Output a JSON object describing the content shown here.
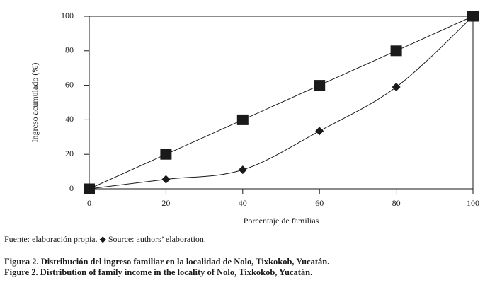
{
  "chart_data": {
    "type": "line",
    "xlabel": "Porcentaje de familias",
    "ylabel": "Ingreso acumulado (%)",
    "x": [
      0,
      20,
      40,
      60,
      80,
      100
    ],
    "series": [
      {
        "color": "#1a1a1a",
        "marker": "square",
        "values": [
          0,
          20,
          40,
          60,
          80,
          100
        ]
      },
      {
        "color": "#1a1a1a",
        "marker": "diamond",
        "smooth": true,
        "values": [
          0,
          5.5,
          11,
          33.5,
          59,
          100
        ]
      }
    ],
    "xlim": [
      0,
      100
    ],
    "xticks": [
      0,
      20,
      40,
      60,
      80,
      100
    ],
    "ylim": [
      0,
      100
    ],
    "yticks": [
      0,
      20,
      40,
      60,
      80,
      100
    ],
    "grid": false
  },
  "note": "Fuente: elaboración propia. ◆ Source: authors’ elaboration.",
  "captions": [
    "Figura 2.  Distribución del ingreso familiar en la localidad de Nolo, Tixkokob, Yucatán.",
    "Figure 2. Distribution of family income in the locality of Nolo, Tixkokob, Yucatán."
  ]
}
